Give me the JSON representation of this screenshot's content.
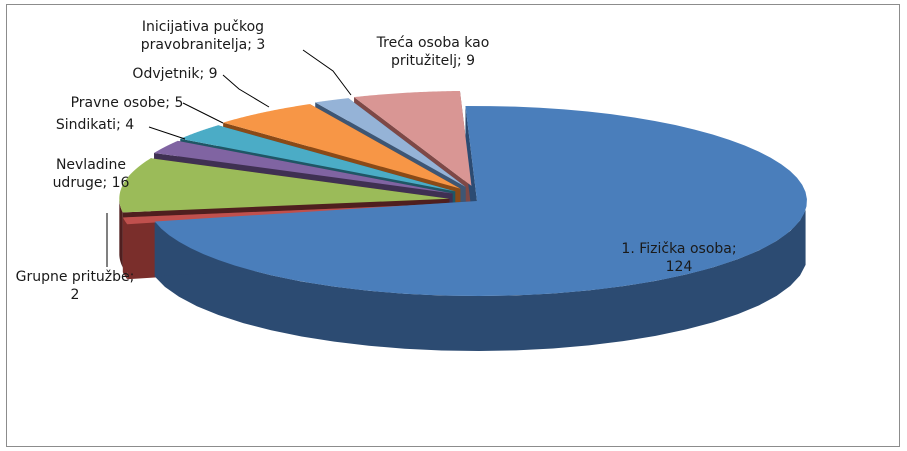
{
  "chart_data": {
    "type": "pie",
    "title": "",
    "three_d": true,
    "exploded": true,
    "legend": "none",
    "slices": [
      {
        "label": "1. Fizička osoba",
        "value": 124,
        "display": [
          "1. Fizička osoba;",
          "124"
        ],
        "color": "#4A7EBB",
        "side": "#2C4B72"
      },
      {
        "label": "Grupne pritužbe",
        "value": 2,
        "display": [
          "Grupne pritužbe;",
          "2"
        ],
        "color": "#C0504D",
        "side": "#7A2E2B"
      },
      {
        "label": "Nevladine udruge",
        "value": 16,
        "display": [
          "Nevladine",
          "udruge; 16"
        ],
        "color": "#9BBB59",
        "side": "#4F1F1F"
      },
      {
        "label": "Sindikati",
        "value": 4,
        "display": [
          "Sindikati; 4"
        ],
        "color": "#8064A2",
        "side": "#3F3052"
      },
      {
        "label": "Pravne osobe",
        "value": 5,
        "display": [
          "Pravne osobe; 5"
        ],
        "color": "#4BACC6",
        "side": "#1F5665"
      },
      {
        "label": "Odvjetnik",
        "value": 9,
        "display": [
          "Odvjetnik; 9"
        ],
        "color": "#F79646",
        "side": "#8A4A17"
      },
      {
        "label": "Inicijativa pučkog pravobranitelja",
        "value": 3,
        "display": [
          "Inicijativa pučkog",
          "pravobranitelja; 3"
        ],
        "color": "#95B3D7",
        "side": "#3E5674"
      },
      {
        "label": "Treća osoba kao pritužitelj",
        "value": 9,
        "display": [
          "Treća osoba kao",
          "pritužitelj; 9"
        ],
        "color": "#D99694",
        "side": "#7E4846"
      }
    ]
  }
}
